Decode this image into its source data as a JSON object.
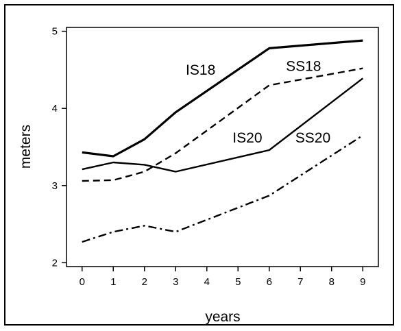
{
  "chart_data": {
    "type": "line",
    "xlabel": "years",
    "ylabel": "meters",
    "x": [
      0,
      1,
      2,
      3,
      4,
      5,
      6,
      7,
      8,
      9
    ],
    "xlim": [
      -0.5,
      9.5
    ],
    "ylim": [
      1.95,
      5.05
    ],
    "xticks": [
      0,
      1,
      2,
      3,
      4,
      5,
      6,
      7,
      8,
      9
    ],
    "yticks": [
      2,
      3,
      4,
      5
    ],
    "grid": false,
    "legend": "none",
    "series": [
      {
        "name": "IS18",
        "style": "solid",
        "width": 3.2,
        "x": [
          0,
          1,
          2,
          3,
          6,
          9
        ],
        "y": [
          3.43,
          3.38,
          3.6,
          3.95,
          4.78,
          4.88
        ],
        "label_at": [
          3.8,
          4.5
        ]
      },
      {
        "name": "SS18",
        "style": "dashed",
        "width": 2.4,
        "x": [
          0,
          1,
          2,
          3,
          6,
          9
        ],
        "y": [
          3.06,
          3.07,
          3.18,
          3.42,
          4.3,
          4.52
        ],
        "label_at": [
          7.1,
          4.55
        ]
      },
      {
        "name": "IS20",
        "style": "solid",
        "width": 2.4,
        "x": [
          0,
          1,
          2,
          3,
          6,
          9
        ],
        "y": [
          3.21,
          3.3,
          3.27,
          3.18,
          3.46,
          4.39
        ],
        "label_at": [
          5.3,
          3.62
        ]
      },
      {
        "name": "SS20",
        "style": "dashdot",
        "width": 2.4,
        "x": [
          0,
          1,
          2,
          3,
          6,
          9
        ],
        "y": [
          2.27,
          2.4,
          2.48,
          2.4,
          2.87,
          3.65
        ],
        "label_at": [
          7.4,
          3.62
        ]
      }
    ]
  }
}
